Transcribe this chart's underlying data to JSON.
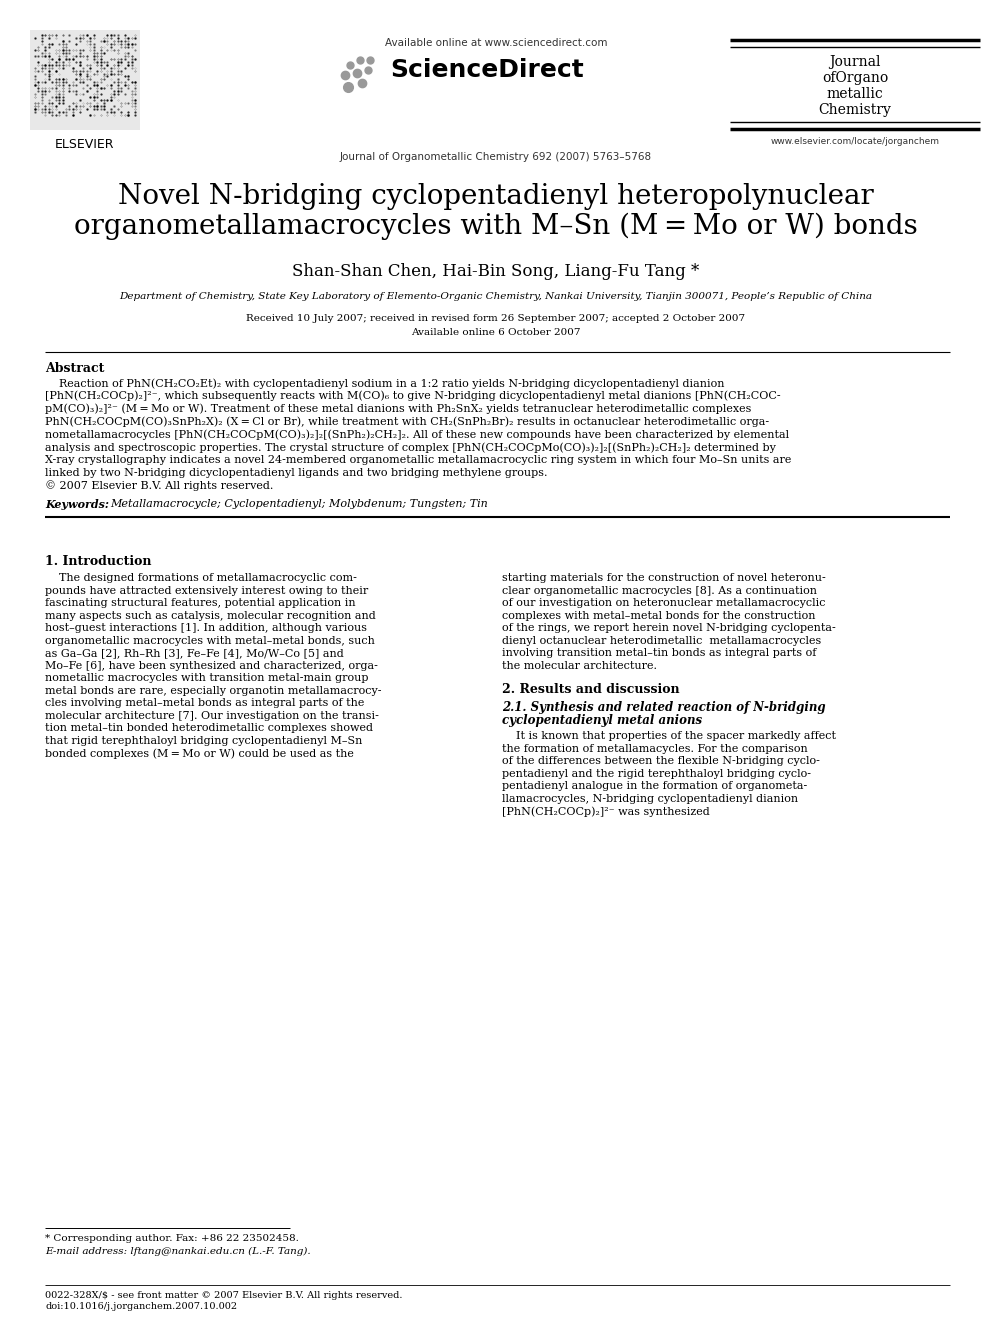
{
  "bg_color": "#ffffff",
  "title_line1": "Novel N-bridging cyclopentadienyl heteropolynuclear",
  "title_line2": "organometallamacrocycles with M–Sn (M = Mo or W) bonds",
  "authors": "Shan-Shan Chen, Hai-Bin Song, Liang-Fu Tang *",
  "affiliation": "Department of Chemistry, State Key Laboratory of Elemento-Organic Chemistry, Nankai University, Tianjin 300071, People’s Republic of China",
  "received": "Received 10 July 2007; received in revised form 26 September 2007; accepted 2 October 2007",
  "available_online_date": "Available online 6 October 2007",
  "journal_header": "Journal of Organometallic Chemistry 692 (2007) 5763–5768",
  "available_online": "Available online at www.sciencedirect.com",
  "sciencedirect": "ScienceDirect",
  "elsevier_url": "www.elsevier.com/locate/jorganchem",
  "abstract_title": "Abstract",
  "keywords_label": "Keywords:",
  "keywords_text": "Metallamacrocycle; Cyclopentadienyl; Molybdenum; Tungsten; Tin",
  "section1_title": "1. Introduction",
  "section2_title": "2. Results and discussion",
  "section21_title": "2.1. Synthesis and related reaction of N-bridging",
  "section21_title2": "cyclopentadienyl metal anions",
  "footnote_star": "* Corresponding author. Fax: +86 22 23502458.",
  "footnote_email": "E-mail address: lftang@nankai.edu.cn (L.-F. Tang).",
  "footer_issn": "0022-328X/$ - see front matter © 2007 Elsevier B.V. All rights reserved.",
  "footer_doi": "doi:10.1016/j.jorganchem.2007.10.002",
  "abstract_lines": [
    "    Reaction of PhN(CH₂CO₂Et)₂ with cyclopentadienyl sodium in a 1:2 ratio yields N-bridging dicyclopentadienyl dianion",
    "[PhN(CH₂COCp)₂]²⁻, which subsequently reacts with M(CO)₆ to give N-bridging dicyclopentadienyl metal dianions [PhN(CH₂COC-",
    "pM(CO)₃)₂]²⁻ (M = Mo or W). Treatment of these metal dianions with Ph₂SnX₂ yields tetranuclear heterodimetallic complexes",
    "PhN(CH₂COCpM(CO)₃SnPh₂X)₂ (X = Cl or Br), while treatment with CH₂(SnPh₂Br)₂ results in octanuclear heterodimetallic orga-",
    "nometallamacrocycles [PhN(CH₂COCpM(CO)₃)₂]₂[(SnPh₂)₂CH₂]₂. All of these new compounds have been characterized by elemental",
    "analysis and spectroscopic properties. The crystal structure of complex [PhN(CH₂COCpMo(CO)₃)₂]₂[(SnPh₂)₂CH₂]₂ determined by",
    "X-ray crystallography indicates a novel 24-membered organometallic metallamacrocyclic ring system in which four Mo–Sn units are",
    "linked by two N-bridging dicyclopentadienyl ligands and two bridging methylene groups.",
    "© 2007 Elsevier B.V. All rights reserved."
  ],
  "col1_lines": [
    "    The designed formations of metallamacrocyclic com-",
    "pounds have attracted extensively interest owing to their",
    "fascinating structural features, potential application in",
    "many aspects such as catalysis, molecular recognition and",
    "host–guest interactions [1]. In addition, although various",
    "organometallic macrocycles with metal–metal bonds, such",
    "as Ga–Ga [2], Rh–Rh [3], Fe–Fe [4], Mo/W–Co [5] and",
    "Mo–Fe [6], have been synthesized and characterized, orga-",
    "nometallic macrocycles with transition metal-main group",
    "metal bonds are rare, especially organotin metallamacrocy-",
    "cles involving metal–metal bonds as integral parts of the",
    "molecular architecture [7]. Our investigation on the transi-",
    "tion metal–tin bonded heterodimetallic complexes showed",
    "that rigid terephthaloyl bridging cyclopentadienyl M–Sn",
    "bonded complexes (M = Mo or W) could be used as the"
  ],
  "col2_lines": [
    "starting materials for the construction of novel heteronu-",
    "clear organometallic macrocycles [8]. As a continuation",
    "of our investigation on heteronuclear metallamacrocyclic",
    "complexes with metal–metal bonds for the construction",
    "of the rings, we report herein novel N-bridging cyclopenta-",
    "dienyl octanuclear heterodimetallic  metallamacrocycles",
    "involving transition metal–tin bonds as integral parts of",
    "the molecular architecture."
  ],
  "col2_sec21_lines": [
    "    It is known that properties of the spacer markedly affect",
    "the formation of metallamacycles. For the comparison",
    "of the differences between the flexible N-bridging cyclo-",
    "pentadienyl and the rigid terephthaloyl bridging cyclo-",
    "pentadienyl analogue in the formation of organometa-",
    "llamacrocycles, N-bridging cyclopentadienyl dianion",
    "[PhN(CH₂COCp)₂]²⁻ was synthesized"
  ]
}
